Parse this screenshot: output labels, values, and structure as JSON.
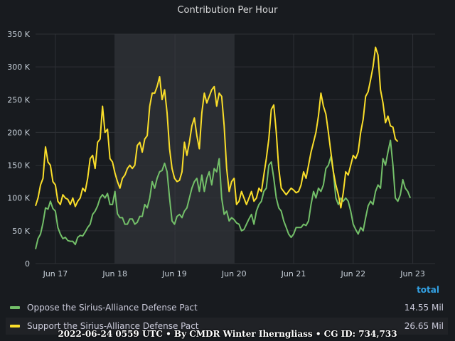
{
  "chart_data": {
    "type": "line",
    "title": "Contribution Per Hour",
    "ylim": [
      0,
      350000
    ],
    "y_ticks": [
      0,
      50000,
      100000,
      150000,
      200000,
      250000,
      300000,
      350000
    ],
    "y_tick_labels": [
      "0",
      "50 K",
      "100 K",
      "150 K",
      "200 K",
      "250 K",
      "300 K",
      "350 K"
    ],
    "x_range": [
      0,
      161
    ],
    "x_ticks": [
      8,
      32,
      56,
      80,
      104,
      128,
      152
    ],
    "x_tick_labels": [
      "Jun 17",
      "Jun 18",
      "Jun 19",
      "Jun 20",
      "Jun 21",
      "Jun 22",
      "Jun 23"
    ],
    "highlight_range": [
      32,
      80
    ],
    "grid": true,
    "series": [
      {
        "name": "Oppose the Sirius-Alliance Defense Pact",
        "color": "#73bf69",
        "points": [
          [
            0,
            22000
          ],
          [
            1,
            38000
          ],
          [
            2,
            45000
          ],
          [
            3,
            62000
          ],
          [
            4,
            85000
          ],
          [
            5,
            83000
          ],
          [
            6,
            95000
          ],
          [
            7,
            84000
          ],
          [
            8,
            80000
          ],
          [
            9,
            55000
          ],
          [
            10,
            45000
          ],
          [
            11,
            38000
          ],
          [
            12,
            40000
          ],
          [
            13,
            35000
          ],
          [
            14,
            34000
          ],
          [
            15,
            34000
          ],
          [
            16,
            29000
          ],
          [
            17,
            40000
          ],
          [
            18,
            43000
          ],
          [
            19,
            42000
          ],
          [
            20,
            48000
          ],
          [
            21,
            55000
          ],
          [
            22,
            60000
          ],
          [
            23,
            75000
          ],
          [
            24,
            80000
          ],
          [
            25,
            88000
          ],
          [
            26,
            100000
          ],
          [
            27,
            105000
          ],
          [
            28,
            100000
          ],
          [
            29,
            107000
          ],
          [
            30,
            90000
          ],
          [
            31,
            90000
          ],
          [
            32,
            110000
          ],
          [
            33,
            76000
          ],
          [
            34,
            70000
          ],
          [
            35,
            70000
          ],
          [
            36,
            60000
          ],
          [
            37,
            60000
          ],
          [
            38,
            68000
          ],
          [
            39,
            68000
          ],
          [
            40,
            60000
          ],
          [
            41,
            63000
          ],
          [
            42,
            72000
          ],
          [
            43,
            72000
          ],
          [
            44,
            90000
          ],
          [
            45,
            85000
          ],
          [
            46,
            100000
          ],
          [
            47,
            125000
          ],
          [
            48,
            115000
          ],
          [
            49,
            130000
          ],
          [
            50,
            140000
          ],
          [
            51,
            142000
          ],
          [
            52,
            153000
          ],
          [
            53,
            140000
          ],
          [
            54,
            100000
          ],
          [
            55,
            65000
          ],
          [
            56,
            60000
          ],
          [
            57,
            72000
          ],
          [
            58,
            75000
          ],
          [
            59,
            70000
          ],
          [
            60,
            80000
          ],
          [
            61,
            85000
          ],
          [
            62,
            100000
          ],
          [
            63,
            115000
          ],
          [
            64,
            125000
          ],
          [
            65,
            130000
          ],
          [
            66,
            110000
          ],
          [
            67,
            135000
          ],
          [
            68,
            110000
          ],
          [
            69,
            130000
          ],
          [
            70,
            140000
          ],
          [
            71,
            120000
          ],
          [
            72,
            145000
          ],
          [
            73,
            140000
          ],
          [
            74,
            160000
          ],
          [
            75,
            100000
          ],
          [
            76,
            75000
          ],
          [
            77,
            80000
          ],
          [
            78,
            65000
          ],
          [
            79,
            70000
          ],
          [
            80,
            67000
          ],
          [
            81,
            62000
          ],
          [
            82,
            60000
          ],
          [
            83,
            50000
          ],
          [
            84,
            52000
          ],
          [
            85,
            60000
          ],
          [
            86,
            68000
          ],
          [
            87,
            75000
          ],
          [
            88,
            60000
          ],
          [
            89,
            80000
          ],
          [
            90,
            90000
          ],
          [
            91,
            95000
          ],
          [
            92,
            110000
          ],
          [
            93,
            115000
          ],
          [
            94,
            150000
          ],
          [
            95,
            155000
          ],
          [
            96,
            130000
          ],
          [
            97,
            100000
          ],
          [
            98,
            85000
          ],
          [
            99,
            80000
          ],
          [
            100,
            65000
          ],
          [
            101,
            55000
          ],
          [
            102,
            45000
          ],
          [
            103,
            40000
          ],
          [
            104,
            45000
          ],
          [
            105,
            55000
          ],
          [
            106,
            55000
          ],
          [
            107,
            55000
          ],
          [
            108,
            60000
          ],
          [
            109,
            58000
          ],
          [
            110,
            65000
          ],
          [
            111,
            90000
          ],
          [
            112,
            110000
          ],
          [
            113,
            100000
          ],
          [
            114,
            115000
          ],
          [
            115,
            110000
          ],
          [
            116,
            120000
          ],
          [
            117,
            145000
          ],
          [
            118,
            150000
          ],
          [
            119,
            163000
          ],
          [
            120,
            140000
          ],
          [
            121,
            100000
          ],
          [
            122,
            90000
          ],
          [
            123,
            100000
          ],
          [
            124,
            95000
          ],
          [
            125,
            100000
          ],
          [
            126,
            95000
          ],
          [
            127,
            80000
          ],
          [
            128,
            60000
          ],
          [
            129,
            52000
          ],
          [
            130,
            45000
          ],
          [
            131,
            55000
          ],
          [
            132,
            50000
          ],
          [
            133,
            70000
          ],
          [
            134,
            88000
          ],
          [
            135,
            95000
          ],
          [
            136,
            90000
          ],
          [
            137,
            110000
          ],
          [
            138,
            120000
          ],
          [
            139,
            115000
          ],
          [
            140,
            160000
          ],
          [
            141,
            150000
          ],
          [
            142,
            170000
          ],
          [
            143,
            188000
          ],
          [
            144,
            150000
          ],
          [
            145,
            100000
          ],
          [
            146,
            95000
          ],
          [
            147,
            105000
          ],
          [
            148,
            128000
          ],
          [
            149,
            115000
          ],
          [
            150,
            110000
          ],
          [
            151,
            100000
          ]
        ]
      },
      {
        "name": "Support the Sirius-Alliance Defense Pact",
        "color": "#fade2a",
        "points": [
          [
            0,
            88000
          ],
          [
            1,
            100000
          ],
          [
            2,
            120000
          ],
          [
            3,
            130000
          ],
          [
            4,
            178000
          ],
          [
            5,
            155000
          ],
          [
            6,
            150000
          ],
          [
            7,
            125000
          ],
          [
            8,
            120000
          ],
          [
            9,
            95000
          ],
          [
            10,
            90000
          ],
          [
            11,
            105000
          ],
          [
            12,
            100000
          ],
          [
            13,
            98000
          ],
          [
            14,
            90000
          ],
          [
            15,
            100000
          ],
          [
            16,
            87000
          ],
          [
            17,
            95000
          ],
          [
            18,
            100000
          ],
          [
            19,
            115000
          ],
          [
            20,
            110000
          ],
          [
            21,
            130000
          ],
          [
            22,
            160000
          ],
          [
            23,
            165000
          ],
          [
            24,
            145000
          ],
          [
            25,
            185000
          ],
          [
            26,
            190000
          ],
          [
            27,
            240000
          ],
          [
            28,
            200000
          ],
          [
            29,
            205000
          ],
          [
            30,
            160000
          ],
          [
            31,
            155000
          ],
          [
            32,
            138000
          ],
          [
            33,
            125000
          ],
          [
            34,
            115000
          ],
          [
            35,
            130000
          ],
          [
            36,
            135000
          ],
          [
            37,
            145000
          ],
          [
            38,
            150000
          ],
          [
            39,
            145000
          ],
          [
            40,
            150000
          ],
          [
            41,
            180000
          ],
          [
            42,
            185000
          ],
          [
            43,
            170000
          ],
          [
            44,
            190000
          ],
          [
            45,
            195000
          ],
          [
            46,
            240000
          ],
          [
            47,
            260000
          ],
          [
            48,
            260000
          ],
          [
            49,
            270000
          ],
          [
            50,
            285000
          ],
          [
            51,
            250000
          ],
          [
            52,
            265000
          ],
          [
            53,
            230000
          ],
          [
            54,
            175000
          ],
          [
            55,
            145000
          ],
          [
            56,
            130000
          ],
          [
            57,
            125000
          ],
          [
            58,
            127000
          ],
          [
            59,
            140000
          ],
          [
            60,
            185000
          ],
          [
            61,
            165000
          ],
          [
            62,
            185000
          ],
          [
            63,
            210000
          ],
          [
            64,
            222000
          ],
          [
            65,
            195000
          ],
          [
            66,
            175000
          ],
          [
            67,
            230000
          ],
          [
            68,
            260000
          ],
          [
            69,
            245000
          ],
          [
            70,
            255000
          ],
          [
            71,
            265000
          ],
          [
            72,
            270000
          ],
          [
            73,
            240000
          ],
          [
            74,
            260000
          ],
          [
            75,
            255000
          ],
          [
            76,
            210000
          ],
          [
            77,
            145000
          ],
          [
            78,
            110000
          ],
          [
            79,
            125000
          ],
          [
            80,
            130000
          ],
          [
            81,
            90000
          ],
          [
            82,
            95000
          ],
          [
            83,
            110000
          ],
          [
            84,
            100000
          ],
          [
            85,
            90000
          ],
          [
            86,
            100000
          ],
          [
            87,
            110000
          ],
          [
            88,
            95000
          ],
          [
            89,
            100000
          ],
          [
            90,
            115000
          ],
          [
            91,
            110000
          ],
          [
            92,
            135000
          ],
          [
            93,
            160000
          ],
          [
            94,
            190000
          ],
          [
            95,
            235000
          ],
          [
            96,
            242000
          ],
          [
            97,
            200000
          ],
          [
            98,
            145000
          ],
          [
            99,
            115000
          ],
          [
            100,
            110000
          ],
          [
            101,
            105000
          ],
          [
            102,
            110000
          ],
          [
            103,
            115000
          ],
          [
            104,
            112000
          ],
          [
            105,
            108000
          ],
          [
            106,
            110000
          ],
          [
            107,
            120000
          ],
          [
            108,
            140000
          ],
          [
            109,
            130000
          ],
          [
            110,
            150000
          ],
          [
            111,
            170000
          ],
          [
            112,
            185000
          ],
          [
            113,
            200000
          ],
          [
            114,
            225000
          ],
          [
            115,
            260000
          ],
          [
            116,
            240000
          ],
          [
            117,
            228000
          ],
          [
            118,
            200000
          ],
          [
            119,
            170000
          ],
          [
            120,
            140000
          ],
          [
            121,
            120000
          ],
          [
            122,
            105000
          ],
          [
            123,
            85000
          ],
          [
            124,
            108000
          ],
          [
            125,
            140000
          ],
          [
            126,
            135000
          ],
          [
            127,
            150000
          ],
          [
            128,
            165000
          ],
          [
            129,
            160000
          ],
          [
            130,
            170000
          ],
          [
            131,
            200000
          ],
          [
            132,
            220000
          ],
          [
            133,
            255000
          ],
          [
            134,
            262000
          ],
          [
            135,
            280000
          ],
          [
            136,
            300000
          ],
          [
            137,
            330000
          ],
          [
            138,
            318000
          ],
          [
            139,
            265000
          ],
          [
            140,
            245000
          ],
          [
            141,
            215000
          ],
          [
            142,
            225000
          ],
          [
            143,
            210000
          ],
          [
            144,
            208000
          ],
          [
            145,
            190000
          ],
          [
            146,
            186000
          ]
        ]
      }
    ]
  },
  "legend": {
    "header": "total",
    "items": [
      {
        "label": "Oppose the Sirius-Alliance Defense Pact",
        "value": "14.55 Mil",
        "color": "#73bf69"
      },
      {
        "label": "Support the Sirius-Alliance Defense Pact",
        "value": "26.65 Mil",
        "color": "#fade2a"
      }
    ]
  },
  "footer": "2022-06-24 0559 UTC • By CMDR Winter Iherngliass • CG ID: 734,733"
}
